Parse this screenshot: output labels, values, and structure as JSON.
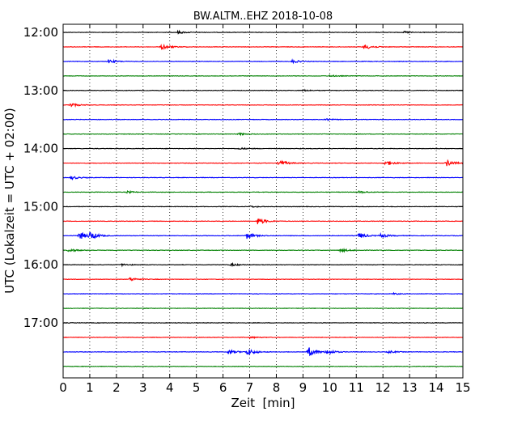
{
  "chart_data": {
    "type": "line",
    "title": "BW.ALTM..EHZ 2018-10-08",
    "xlabel": "Zeit  [min]",
    "ylabel": "UTC (Lokalzeit = UTC + 02:00)",
    "xlim": [
      0,
      15
    ],
    "x_ticks": [
      "0",
      "1",
      "2",
      "3",
      "4",
      "5",
      "6",
      "7",
      "8",
      "9",
      "10",
      "11",
      "12",
      "13",
      "14",
      "15"
    ],
    "y_ticks": [
      "12:00",
      "13:00",
      "14:00",
      "15:00",
      "16:00",
      "17:00"
    ],
    "grid": "vertical dotted lines at each minute",
    "color_cycle": [
      "#000000",
      "#ff0000",
      "#0000ff",
      "#008000"
    ],
    "series": [
      {
        "start": "12:00",
        "color": "#000000",
        "events": [
          {
            "t": 4.3,
            "amp": 0.5
          },
          {
            "t": 12.8,
            "amp": 0.35
          }
        ]
      },
      {
        "start": "12:15",
        "color": "#ff0000",
        "events": [
          {
            "t": 3.7,
            "amp": 1.1
          },
          {
            "t": 11.3,
            "amp": 1.0
          }
        ]
      },
      {
        "start": "12:30",
        "color": "#0000ff",
        "events": [
          {
            "t": 1.7,
            "amp": 0.7
          },
          {
            "t": 8.6,
            "amp": 0.6
          }
        ]
      },
      {
        "start": "12:45",
        "color": "#008000",
        "events": [
          {
            "t": 10.0,
            "amp": 0.35
          }
        ]
      },
      {
        "start": "13:00",
        "color": "#000000",
        "events": [
          {
            "t": 9.0,
            "amp": 0.3
          }
        ]
      },
      {
        "start": "13:15",
        "color": "#ff0000",
        "events": [
          {
            "t": 0.25,
            "amp": 0.8
          }
        ]
      },
      {
        "start": "13:30",
        "color": "#0000ff",
        "events": [
          {
            "t": 9.8,
            "amp": 0.4
          }
        ]
      },
      {
        "start": "13:45",
        "color": "#008000",
        "events": [
          {
            "t": 6.6,
            "amp": 0.4
          }
        ]
      },
      {
        "start": "14:00",
        "color": "#000000",
        "events": [
          {
            "t": 6.6,
            "amp": 0.35
          }
        ]
      },
      {
        "start": "14:15",
        "color": "#ff0000",
        "events": [
          {
            "t": 8.1,
            "amp": 1.2
          },
          {
            "t": 12.1,
            "amp": 1.0
          },
          {
            "t": 14.4,
            "amp": 1.2
          }
        ]
      },
      {
        "start": "14:30",
        "color": "#0000ff",
        "events": [
          {
            "t": 0.3,
            "amp": 0.7
          }
        ]
      },
      {
        "start": "14:45",
        "color": "#008000",
        "events": [
          {
            "t": 2.4,
            "amp": 0.4
          },
          {
            "t": 11.1,
            "amp": 0.45
          }
        ]
      },
      {
        "start": "15:00",
        "color": "#000000",
        "events": [
          {
            "t": 7.0,
            "amp": 0.3
          }
        ]
      },
      {
        "start": "15:15",
        "color": "#ff0000",
        "events": [
          {
            "t": 7.3,
            "amp": 1.3
          }
        ]
      },
      {
        "start": "15:30",
        "color": "#0000ff",
        "events": [
          {
            "t": 0.6,
            "amp": 1.6
          },
          {
            "t": 1.0,
            "amp": 1.4
          },
          {
            "t": 6.9,
            "amp": 1.3
          },
          {
            "t": 11.1,
            "amp": 1.2
          },
          {
            "t": 11.9,
            "amp": 0.8
          }
        ]
      },
      {
        "start": "15:45",
        "color": "#008000",
        "events": [
          {
            "t": 0.2,
            "amp": 0.7
          },
          {
            "t": 10.4,
            "amp": 0.7
          }
        ]
      },
      {
        "start": "16:00",
        "color": "#000000",
        "events": [
          {
            "t": 2.2,
            "amp": 0.4
          },
          {
            "t": 6.3,
            "amp": 0.5
          }
        ]
      },
      {
        "start": "16:15",
        "color": "#ff0000",
        "events": [
          {
            "t": 2.5,
            "amp": 0.7
          }
        ]
      },
      {
        "start": "16:30",
        "color": "#0000ff",
        "events": [
          {
            "t": 12.4,
            "amp": 0.3
          }
        ]
      },
      {
        "start": "16:45",
        "color": "#008000",
        "events": []
      },
      {
        "start": "17:00",
        "color": "#000000",
        "events": []
      },
      {
        "start": "17:15",
        "color": "#ff0000",
        "events": [
          {
            "t": 7.0,
            "amp": 0.35
          }
        ]
      },
      {
        "start": "17:30",
        "color": "#0000ff",
        "events": [
          {
            "t": 6.2,
            "amp": 0.9
          },
          {
            "t": 6.9,
            "amp": 1.3
          },
          {
            "t": 9.2,
            "amp": 1.9
          },
          {
            "t": 9.9,
            "amp": 0.9
          },
          {
            "t": 12.2,
            "amp": 0.5
          }
        ]
      },
      {
        "start": "17:45",
        "color": "#008000",
        "events": []
      }
    ]
  }
}
